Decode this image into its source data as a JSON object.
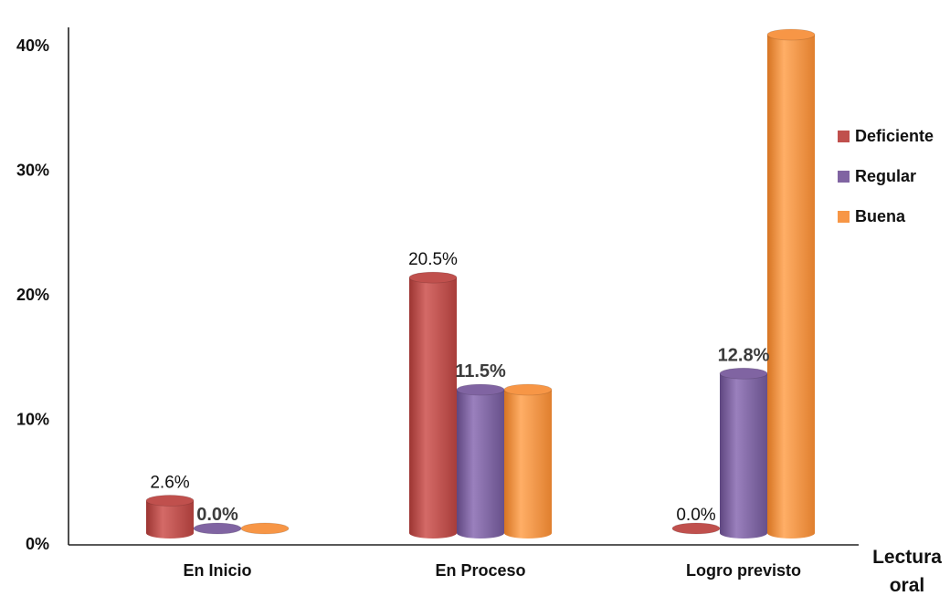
{
  "chart_data": {
    "type": "bar",
    "categories": [
      "En Inicio",
      "En Proceso",
      "Logro previsto"
    ],
    "series": [
      {
        "name": "Deficiente",
        "color": "#c0504d",
        "values": [
          2.6,
          20.5,
          0.0
        ]
      },
      {
        "name": "Regular",
        "color": "#8064a2",
        "values": [
          0.0,
          11.5,
          12.8
        ]
      },
      {
        "name": "Buena",
        "color": "#f79646",
        "values": [
          0.0,
          11.5,
          40.0
        ]
      }
    ],
    "data_labels": [
      {
        "category": 0,
        "series": 0,
        "text": "2.6%",
        "bold": false
      },
      {
        "category": 0,
        "series": 1,
        "text": "0.0%",
        "bold": true
      },
      {
        "category": 1,
        "series": 0,
        "text": "20.5%",
        "bold": false
      },
      {
        "category": 1,
        "series": 1,
        "text": "11.5%",
        "bold": true
      },
      {
        "category": 2,
        "series": 0,
        "text": "0.0%",
        "bold": false
      },
      {
        "category": 2,
        "series": 1,
        "text": "12.8%",
        "bold": true
      }
    ],
    "y_ticks": [
      "0%",
      "10%",
      "20%",
      "30%",
      "40%"
    ],
    "ylim": [
      0,
      40
    ],
    "xlabel": "Lectura oral",
    "xlabel_lines": [
      "Lectura",
      "oral"
    ],
    "legend_position": "right",
    "grid": false
  },
  "legend": [
    {
      "label": "Deficiente",
      "color": "#c0504d"
    },
    {
      "label": "Regular",
      "color": "#8064a2"
    },
    {
      "label": "Buena",
      "color": "#f79646"
    }
  ]
}
